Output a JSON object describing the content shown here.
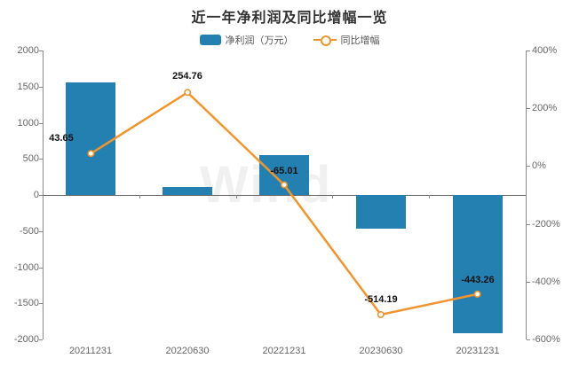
{
  "title": "近一年净利润及同比增幅一览",
  "watermark": "Wind",
  "legend": {
    "bar_label": "净利润（万元）",
    "line_label": "同比增幅"
  },
  "colors": {
    "bar": "#2580b2",
    "line": "#f0952d",
    "title": "#333333",
    "axis": "#888888",
    "text": "#666666"
  },
  "chart_data": {
    "type": "bar",
    "categories": [
      "20211231",
      "20220630",
      "20221231",
      "20230630",
      "20231231"
    ],
    "series": [
      {
        "name": "净利润（万元）",
        "type": "bar",
        "axis": "left",
        "values": [
          1560,
          105,
          550,
          -470,
          -1920
        ]
      },
      {
        "name": "同比增幅",
        "type": "line",
        "axis": "right",
        "values": [
          43.65,
          254.76,
          -65.01,
          -514.19,
          -443.26
        ],
        "point_labels": [
          "43.65",
          "254.76",
          "-65.01",
          "-514.19",
          "-443.26"
        ],
        "label_dx": [
          -33,
          0,
          0,
          0,
          0
        ],
        "label_dy": [
          -12,
          -13,
          -11,
          -12,
          -11
        ]
      }
    ],
    "left_axis": {
      "min": -2000,
      "max": 2000,
      "step": 500,
      "ticks": [
        "2000",
        "1500",
        "1000",
        "500",
        "0",
        "-500",
        "-1000",
        "-1500",
        "-2000"
      ]
    },
    "right_axis": {
      "min": -600,
      "max": 400,
      "step": 200,
      "ticks": [
        "400%",
        "200%",
        "0%",
        "-200%",
        "-400%",
        "-600%"
      ]
    },
    "grid": false,
    "legend_position": "top",
    "title": "近一年净利润及同比增幅一览"
  }
}
